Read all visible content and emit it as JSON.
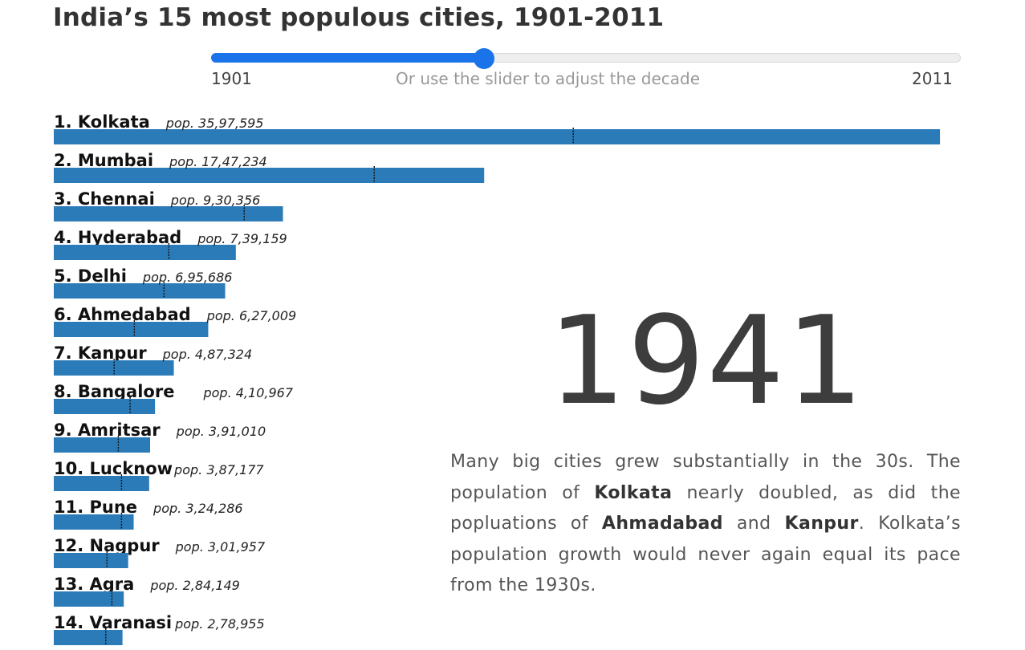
{
  "page": {
    "title": "India’s 15 most populous cities, 1901-2011"
  },
  "slider": {
    "start_label": "1901",
    "end_label": "2011",
    "hint": "Or use the slider to adjust the decade",
    "min": 1901,
    "max": 2011,
    "value": 1941,
    "accent_color": "#1a73e8"
  },
  "year_display": "1941",
  "description": {
    "parts": [
      {
        "text": "Many big cities grew substantially in the 30s. The population of ",
        "bold": false
      },
      {
        "text": "Kolkata",
        "bold": true
      },
      {
        "text": " nearly doubled, as did the popluations of ",
        "bold": false
      },
      {
        "text": "Ahmadabad",
        "bold": true
      },
      {
        "text": " and ",
        "bold": false
      },
      {
        "text": "Kanpur",
        "bold": true
      },
      {
        "text": ". Kolkata’s population growth would never again equal its pace from the 1930s.",
        "bold": false
      }
    ]
  },
  "chart_data": {
    "type": "bar",
    "orientation": "horizontal",
    "bar_color": "#2b7bb9",
    "marker_style": "dotted line",
    "categories": [
      "1. Kolkata",
      "2. Mumbai",
      "3. Chennai",
      "4. Hyderabad",
      "5. Delhi",
      "6. Ahmedabad",
      "7. Kanpur",
      "8. Bangalore",
      "9. Amritsar",
      "10. Lucknow",
      "11. Pune",
      "12. Nagpur",
      "13. Agra",
      "14. Varanasi"
    ],
    "pop_labels": [
      "pop. 35,97,595",
      "pop. 17,47,234",
      "pop. 9,30,356",
      "pop. 7,39,159",
      "pop. 6,95,686",
      "pop. 6,27,009",
      "pop. 4,87,324",
      "pop. 4,10,967",
      "pop. 3,91,010",
      "pop. 3,87,177",
      "pop. 3,24,286",
      "pop. 3,01,957",
      "pop. 2,84,149",
      "pop. 2,78,955"
    ],
    "values": [
      3597595,
      1747234,
      930356,
      739159,
      695686,
      627009,
      487324,
      410967,
      391010,
      387177,
      324286,
      301957,
      284149,
      278955
    ],
    "previous_decade_markers": [
      2108891,
      1301000,
      773000,
      466894,
      447442,
      327000,
      245000,
      309785,
      262000,
      275000,
      275000,
      216000,
      236000,
      211000
    ],
    "xlim": [
      0,
      3630000
    ]
  }
}
